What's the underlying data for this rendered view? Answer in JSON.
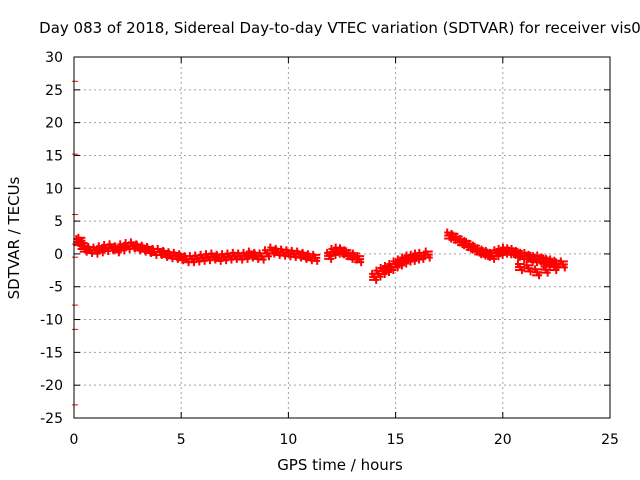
{
  "chart_data": {
    "type": "scatter",
    "title": "Day 083 of 2018, Sidereal Day-to-day VTEC variation (SDTVAR) for receiver vis0",
    "xlabel": "GPS time / hours",
    "ylabel": "SDTVAR / TECUs",
    "xlim": [
      0,
      25
    ],
    "ylim": [
      -25,
      30
    ],
    "xticks": [
      0,
      5,
      10,
      15,
      20,
      25
    ],
    "yticks": [
      -25,
      -20,
      -15,
      -10,
      -5,
      0,
      5,
      10,
      15,
      20,
      25,
      30
    ],
    "grid": true,
    "marker": "+",
    "series_color": "#ff0000",
    "series": [
      {
        "name": "SDTVAR",
        "x": [
          0.05,
          0.05,
          0.05,
          0.05,
          0.05,
          0.05,
          0.05,
          0.05,
          0.2,
          0.3,
          0.4,
          0.5,
          0.75,
          1.0,
          1.25,
          1.5,
          1.75,
          2.0,
          2.25,
          2.5,
          2.75,
          3.0,
          3.25,
          3.5,
          3.75,
          4.0,
          4.25,
          4.5,
          4.75,
          5.0,
          5.25,
          5.5,
          5.75,
          6.0,
          6.25,
          6.5,
          6.75,
          7.0,
          7.25,
          7.5,
          7.75,
          8.0,
          8.25,
          8.5,
          8.75,
          9.0,
          9.25,
          9.5,
          9.75,
          10.0,
          10.25,
          10.5,
          10.75,
          11.0,
          11.25,
          11.9,
          12.1,
          12.3,
          12.5,
          12.7,
          12.9,
          13.1,
          13.3,
          14.0,
          14.2,
          14.4,
          14.6,
          14.8,
          15.0,
          15.2,
          15.4,
          15.6,
          15.8,
          16.0,
          16.2,
          16.5,
          17.5,
          17.7,
          17.9,
          18.1,
          18.3,
          18.5,
          18.7,
          18.9,
          19.1,
          19.3,
          19.5,
          19.7,
          19.9,
          20.1,
          20.3,
          20.5,
          20.7,
          20.9,
          21.1,
          21.3,
          21.5,
          21.7,
          21.9,
          22.1,
          22.3,
          22.5,
          22.8,
          20.8,
          21.2,
          21.6,
          22.0,
          22.4
        ],
        "y": [
          26.3,
          15.2,
          6.0,
          1.5,
          -0.5,
          -7.8,
          -11.5,
          -23.0,
          1.8,
          2.0,
          1.2,
          0.8,
          0.6,
          0.5,
          0.7,
          0.9,
          1.0,
          0.7,
          1.0,
          1.2,
          1.3,
          1.0,
          0.8,
          0.6,
          0.3,
          0.3,
          0.0,
          -0.2,
          -0.3,
          -0.5,
          -0.8,
          -0.8,
          -0.7,
          -0.6,
          -0.5,
          -0.4,
          -0.6,
          -0.5,
          -0.4,
          -0.3,
          -0.4,
          -0.3,
          -0.1,
          -0.3,
          -0.4,
          0.1,
          0.5,
          0.3,
          0.2,
          0.1,
          0.0,
          -0.1,
          -0.3,
          -0.5,
          -0.6,
          -0.3,
          0.3,
          0.5,
          0.4,
          0.1,
          -0.3,
          -0.4,
          -0.8,
          -3.5,
          -3.0,
          -2.6,
          -2.3,
          -2.0,
          -1.6,
          -1.3,
          -1.0,
          -0.7,
          -0.6,
          -0.4,
          -0.3,
          -0.1,
          2.8,
          2.6,
          2.2,
          1.8,
          1.5,
          1.1,
          0.8,
          0.4,
          0.2,
          0.0,
          -0.3,
          0.1,
          0.3,
          0.5,
          0.4,
          0.3,
          0.0,
          -0.3,
          -0.3,
          -0.6,
          -0.8,
          -0.7,
          -1.0,
          -1.2,
          -1.3,
          -1.5,
          -1.6,
          -2.0,
          -2.2,
          -2.8,
          -2.4,
          -2.0
        ]
      }
    ]
  }
}
